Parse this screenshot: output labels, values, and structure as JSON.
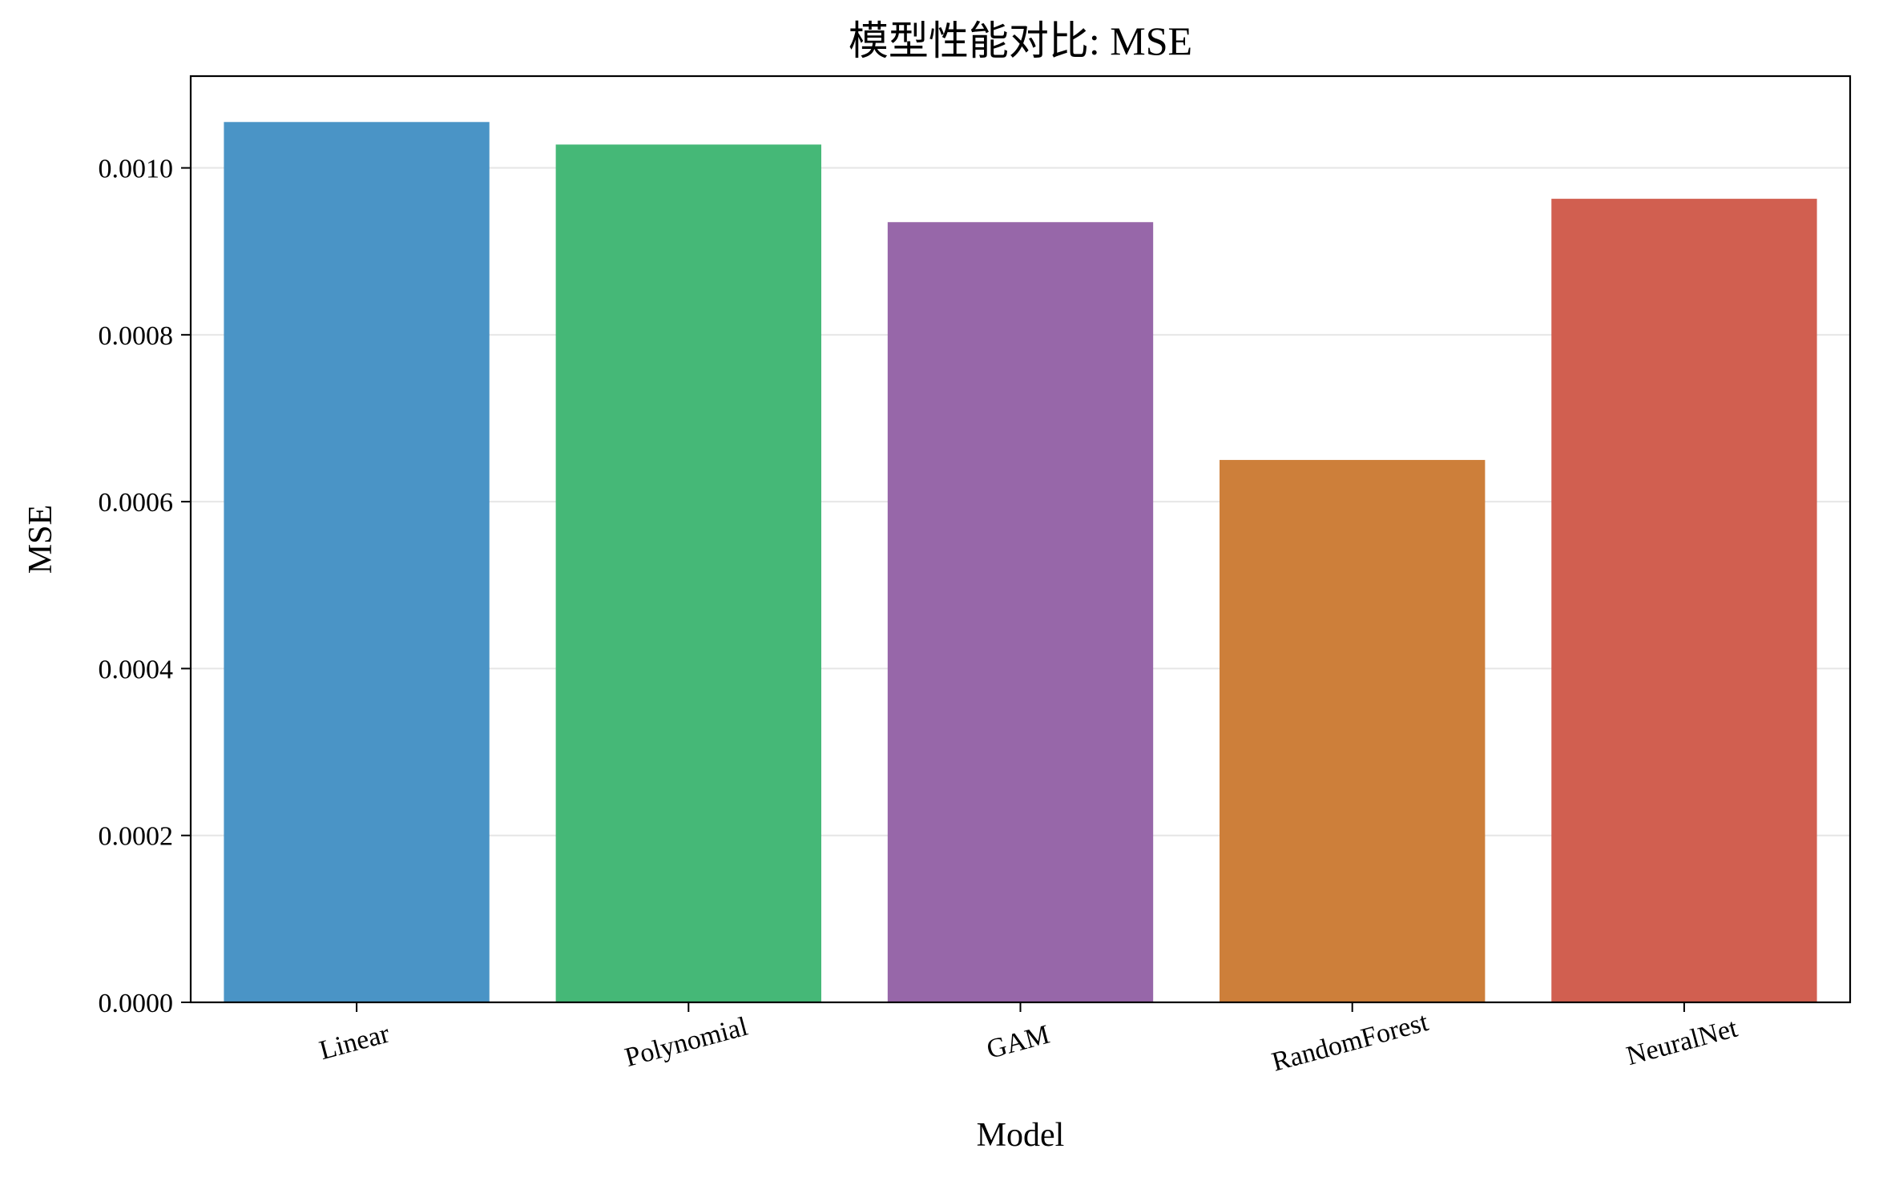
{
  "chart_data": {
    "type": "bar",
    "title": "模型性能对比: MSE",
    "xlabel": "Model",
    "ylabel": "MSE",
    "categories": [
      "Linear",
      "Polynomial",
      "GAM",
      "RandomForest",
      "NeuralNet"
    ],
    "values": [
      0.001055,
      0.001028,
      0.000935,
      0.00065,
      0.000963
    ],
    "colors": [
      "#4a94c6",
      "#45b877",
      "#9767a9",
      "#cd7f3a",
      "#d15f50"
    ],
    "ylim": [
      0,
      0.00111
    ],
    "yticks": [
      "0.0000",
      "0.0002",
      "0.0004",
      "0.0006",
      "0.0008",
      "0.0010"
    ],
    "ytick_values": [
      0,
      0.0002,
      0.0004,
      0.0006,
      0.0008,
      0.001
    ],
    "grid": "horizontal",
    "legend": "none"
  }
}
